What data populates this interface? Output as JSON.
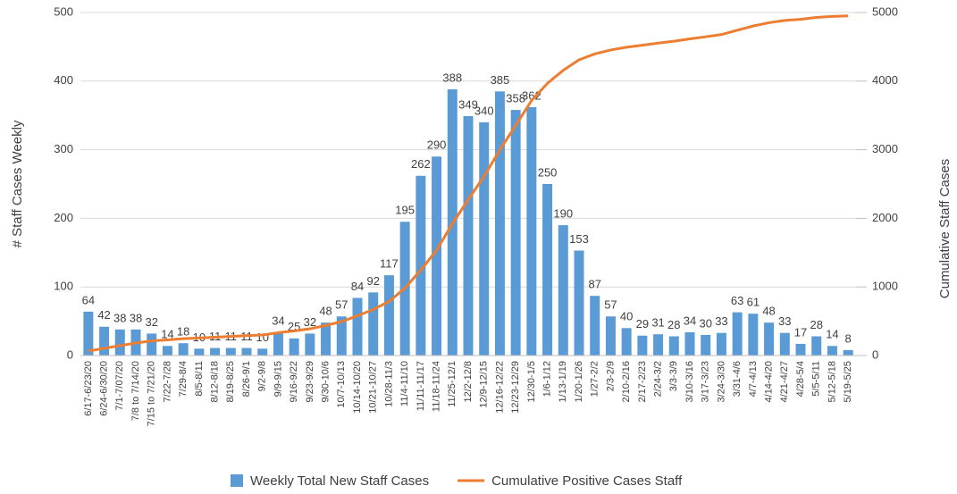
{
  "chart_data": {
    "type": "bar",
    "y_label": "# Staff Cases Weekly",
    "y2_label": "Cumulative Staff Cases",
    "categories": [
      "6/17-6/23/20",
      "6/24-6/30/20",
      "7/1-7/07/20",
      "7/8 to 7/14/20",
      "7/15 to 7/21/20",
      "7/22-7/28",
      "7/29-8/4",
      "8/5-8/11",
      "8/12-8/18",
      "8/19-8/25",
      "8/26-9/1",
      "9/2-9/8",
      "9/9-9/15",
      "9/16-9/22",
      "9/23-9/29",
      "9/30-10/6",
      "10/7-10/13",
      "10/14-10/20",
      "10/21-10/27",
      "10/28-11/3",
      "11/4-11/10",
      "11/11-11/17",
      "11/18-11/24",
      "11/25-12/1",
      "12/2-12/8",
      "12/9-12/15",
      "12/16-12/22",
      "12/23-12/29",
      "12/30-1/5",
      "1/6-1/12",
      "1/13-1/19",
      "1/20-1/26",
      "1/27-2/2",
      "2/3-2/9",
      "2/10-2/16",
      "2/17-2/23",
      "2/24-3/2",
      "3/3-3/9",
      "3/10-3/16",
      "3/17-3/23",
      "3/24-3/30",
      "3/31-4/6",
      "4/7-4/13",
      "4/14-4/20",
      "4/21-4/27",
      "4/28-5/4",
      "5/5-5/11",
      "5/12-5/18",
      "5/19-5/25"
    ],
    "series": [
      {
        "name": "Weekly Total New Staff Cases",
        "type": "bar",
        "color": "#5b9bd5",
        "values": [
          64,
          42,
          38,
          38,
          32,
          14,
          18,
          10,
          11,
          11,
          11,
          10,
          34,
          25,
          32,
          48,
          57,
          84,
          92,
          117,
          195,
          262,
          290,
          388,
          349,
          340,
          385,
          358,
          362,
          250,
          190,
          153,
          87,
          57,
          40,
          29,
          31,
          28,
          34,
          30,
          33,
          63,
          61,
          48,
          33,
          17,
          28,
          14,
          8
        ]
      },
      {
        "name": "Cumulative Positive Cases Staff",
        "type": "line",
        "axis": "y2",
        "color": "#ed7d31",
        "values": [
          64,
          106,
          144,
          182,
          214,
          228,
          246,
          256,
          267,
          278,
          289,
          299,
          333,
          358,
          390,
          438,
          495,
          579,
          671,
          788,
          983,
          1245,
          1535,
          1923,
          2272,
          2612,
          2997,
          3355,
          3717,
          3967,
          4157,
          4310,
          4397,
          4454,
          4494,
          4523,
          4554,
          4582,
          4616,
          4646,
          4679,
          4742,
          4803,
          4851,
          4884,
          4901,
          4929,
          4943,
          4951
        ]
      }
    ],
    "ylim": [
      0,
      500
    ],
    "yticks": [
      0,
      100,
      200,
      300,
      400,
      500
    ],
    "y2lim": [
      0,
      5000
    ],
    "y2ticks": [
      0,
      1000,
      2000,
      3000,
      4000,
      5000
    ],
    "grid": true,
    "legend": "bottom"
  }
}
